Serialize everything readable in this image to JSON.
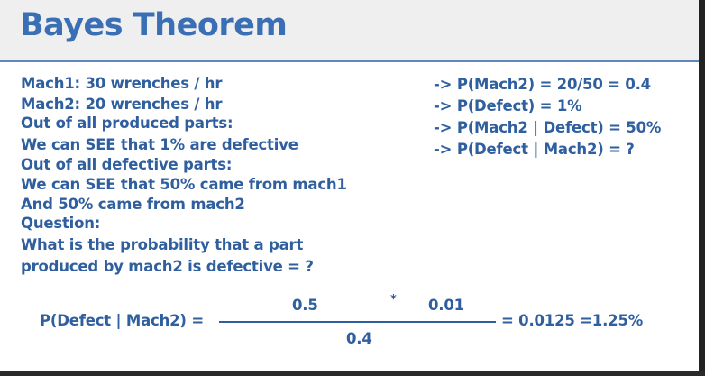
{
  "title": "Bayes Theorem",
  "left_lines": [
    "Mach1: 30 wrenches / hr",
    "Mach2: 20 wrenches / hr",
    "Out of all produced parts:",
    "We can SEE that 1% are defective",
    "Out of all defective parts:",
    "We can SEE that 50% came from mach1",
    "And 50% came from mach2",
    "Question:",
    "What is the probability that a part",
    "produced by mach2 is defective = ?"
  ],
  "right_lines": [
    "-> P(Mach2) = 20/50 = 0.4",
    "-> P(Defect) = 1%",
    "-> P(Mach2 | Defect) = 50%",
    "-> P(Defect | Mach2) = ?"
  ],
  "formula": {
    "lhs": "P(Defect | Mach2) =",
    "numerator_a": "0.5",
    "operator": "*",
    "numerator_b": "0.01",
    "denominator": "0.4",
    "result": "= 0.0125 =1.25%"
  },
  "colors": {
    "text": "#2f5f9e",
    "title": "#3a6fb5",
    "divider": "#5f86bd",
    "header_bg": "#efefef",
    "frame": "#1d1d1d"
  }
}
